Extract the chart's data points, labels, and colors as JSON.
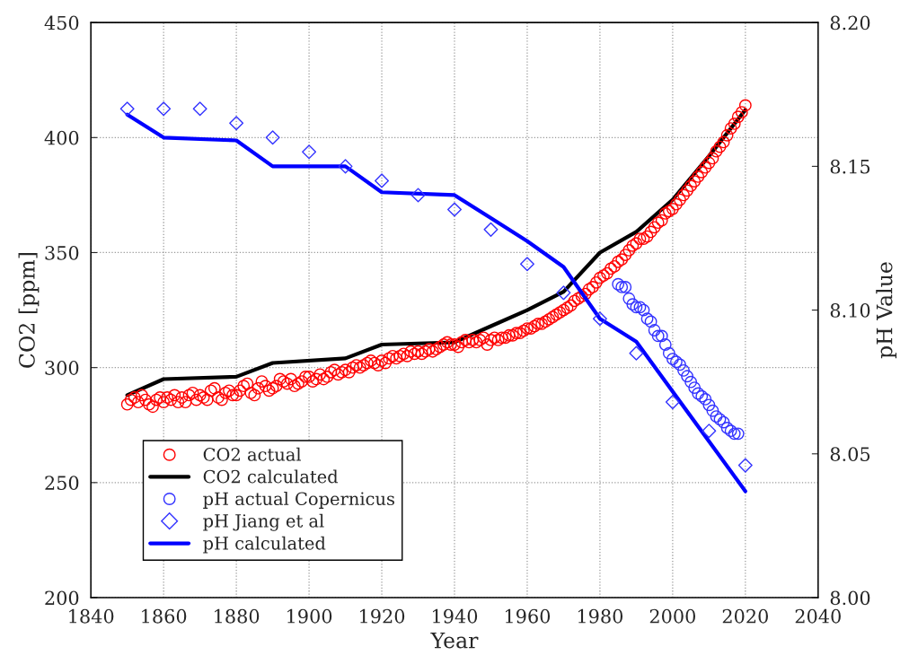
{
  "chart_data": {
    "type": "scatter",
    "xlabel": "Year",
    "ylabel": "CO2 [ppm]",
    "y2label": "pH Value",
    "xlim": [
      1840,
      2040
    ],
    "xticks": [
      1840,
      1860,
      1880,
      1900,
      1920,
      1940,
      1960,
      1980,
      2000,
      2020,
      2040
    ],
    "ylim": [
      200,
      450
    ],
    "yticks": [
      200,
      250,
      300,
      350,
      400,
      450
    ],
    "y2lim": [
      8.0,
      8.2
    ],
    "y2ticks": [
      {
        "value": 8.0,
        "label": "8.00"
      },
      {
        "value": 8.05,
        "label": "8.05"
      },
      {
        "value": 8.1,
        "label": "8.10"
      },
      {
        "value": 8.15,
        "label": "8.15"
      },
      {
        "value": 8.2,
        "label": "8.20"
      }
    ],
    "grid": true,
    "legend": "bottom left",
    "series": [
      {
        "name": "CO2 actual",
        "marker": "circle",
        "color": "#ff0000",
        "x": [
          1850,
          1851,
          1852,
          1853,
          1854,
          1855,
          1856,
          1857,
          1858,
          1859,
          1860,
          1861,
          1862,
          1863,
          1864,
          1865,
          1866,
          1867,
          1868,
          1869,
          1870,
          1871,
          1872,
          1873,
          1874,
          1875,
          1876,
          1877,
          1878,
          1879,
          1880,
          1881,
          1882,
          1883,
          1884,
          1885,
          1886,
          1887,
          1888,
          1889,
          1890,
          1891,
          1892,
          1893,
          1894,
          1895,
          1896,
          1897,
          1898,
          1899,
          1900,
          1901,
          1902,
          1903,
          1904,
          1905,
          1906,
          1907,
          1908,
          1909,
          1910,
          1911,
          1912,
          1913,
          1914,
          1915,
          1916,
          1917,
          1918,
          1919,
          1920,
          1921,
          1922,
          1923,
          1924,
          1925,
          1926,
          1927,
          1928,
          1929,
          1930,
          1931,
          1932,
          1933,
          1934,
          1935,
          1936,
          1937,
          1938,
          1939,
          1940,
          1941,
          1942,
          1943,
          1944,
          1945,
          1946,
          1947,
          1948,
          1949,
          1950,
          1951,
          1952,
          1953,
          1954,
          1955,
          1956,
          1957,
          1958,
          1959,
          1960,
          1961,
          1962,
          1963,
          1964,
          1965,
          1966,
          1967,
          1968,
          1969,
          1970,
          1971,
          1972,
          1973,
          1974,
          1975,
          1976,
          1977,
          1978,
          1979,
          1980,
          1981,
          1982,
          1983,
          1984,
          1985,
          1986,
          1987,
          1988,
          1989,
          1990,
          1991,
          1992,
          1993,
          1994,
          1995,
          1996,
          1997,
          1998,
          1999,
          2000,
          2001,
          2002,
          2003,
          2004,
          2005,
          2006,
          2007,
          2008,
          2009,
          2010,
          2011,
          2012,
          2013,
          2014,
          2015,
          2016,
          2017,
          2018,
          2019,
          2020
        ],
        "values": [
          284,
          286,
          287,
          285,
          288,
          286,
          284,
          283,
          286,
          287,
          285,
          287,
          286,
          288,
          285,
          287,
          285,
          288,
          289,
          286,
          288,
          287,
          286,
          290,
          291,
          287,
          286,
          289,
          290,
          288,
          288,
          290,
          292,
          293,
          289,
          288,
          291,
          294,
          292,
          290,
          291,
          292,
          295,
          294,
          293,
          295,
          292,
          293,
          294,
          296,
          296,
          294,
          295,
          297,
          295,
          296,
          298,
          299,
          297,
          298,
          299,
          298,
          300,
          301,
          300,
          301,
          302,
          303,
          302,
          301,
          303,
          302,
          304,
          305,
          304,
          305,
          306,
          305,
          307,
          306,
          307,
          306,
          307,
          308,
          307,
          308,
          309,
          310,
          311,
          310,
          310,
          309,
          311,
          312,
          311,
          312,
          311,
          312,
          313,
          310,
          312,
          313,
          312,
          313,
          313,
          314,
          314,
          315,
          315,
          316,
          317,
          317,
          318,
          319,
          319,
          320,
          321,
          322,
          323,
          324,
          325,
          326,
          327,
          329,
          330,
          331,
          332,
          334,
          335,
          337,
          339,
          340,
          341,
          343,
          344,
          346,
          347,
          349,
          351,
          353,
          354,
          356,
          356,
          357,
          359,
          361,
          363,
          364,
          367,
          368,
          369,
          371,
          373,
          375,
          377,
          379,
          381,
          383,
          385,
          387,
          389,
          391,
          394,
          396,
          398,
          401,
          404,
          406,
          409,
          411,
          414
        ]
      },
      {
        "name": "CO2 calculated",
        "type": "line",
        "marker": "none",
        "line_style": "solid",
        "color": "#000000",
        "x": [
          1850,
          1860,
          1880,
          1890,
          1910,
          1920,
          1940,
          1950,
          1960,
          1970,
          1980,
          1990,
          2000,
          2010,
          2020
        ],
        "values": [
          288,
          295,
          296,
          302,
          304,
          310,
          311,
          318,
          325,
          333,
          350,
          359,
          373,
          392,
          412
        ]
      },
      {
        "name": "pH actual Copernicus",
        "marker": "circle",
        "axis": "y2",
        "color": "#3333ff",
        "x": [
          1985,
          1986,
          1987,
          1988,
          1989,
          1990,
          1991,
          1992,
          1993,
          1994,
          1995,
          1996,
          1997,
          1998,
          1999,
          2000,
          2001,
          2002,
          2003,
          2004,
          2005,
          2006,
          2007,
          2008,
          2009,
          2010,
          2011,
          2012,
          2013,
          2014,
          2015,
          2016,
          2017,
          2018
        ],
        "values": [
          8.109,
          8.108,
          8.108,
          8.104,
          8.102,
          8.101,
          8.101,
          8.1,
          8.097,
          8.096,
          8.093,
          8.091,
          8.091,
          8.088,
          8.085,
          8.083,
          8.082,
          8.081,
          8.079,
          8.077,
          8.075,
          8.073,
          8.071,
          8.07,
          8.069,
          8.067,
          8.065,
          8.063,
          8.062,
          8.061,
          8.059,
          8.058,
          8.057,
          8.057
        ]
      },
      {
        "name": "pH Jiang et al",
        "marker": "diamond",
        "axis": "y2",
        "color": "#3333ff",
        "x": [
          1850,
          1860,
          1870,
          1880,
          1890,
          1900,
          1910,
          1920,
          1930,
          1940,
          1950,
          1960,
          1970,
          1980,
          1990,
          2000,
          2010,
          2020
        ],
        "values": [
          8.17,
          8.17,
          8.17,
          8.165,
          8.16,
          8.155,
          8.15,
          8.145,
          8.14,
          8.135,
          8.128,
          8.116,
          8.106,
          8.097,
          8.085,
          8.068,
          8.058,
          8.046
        ]
      },
      {
        "name": "pH calculated",
        "type": "line",
        "marker": "none",
        "line_style": "solid",
        "axis": "y2",
        "color": "#0000ff",
        "x": [
          1850,
          1860,
          1880,
          1890,
          1910,
          1920,
          1940,
          1950,
          1960,
          1970,
          1980,
          1990,
          2020
        ],
        "values": [
          8.168,
          8.16,
          8.159,
          8.15,
          8.15,
          8.141,
          8.14,
          8.132,
          8.124,
          8.115,
          8.097,
          8.089,
          8.037
        ]
      }
    ]
  }
}
